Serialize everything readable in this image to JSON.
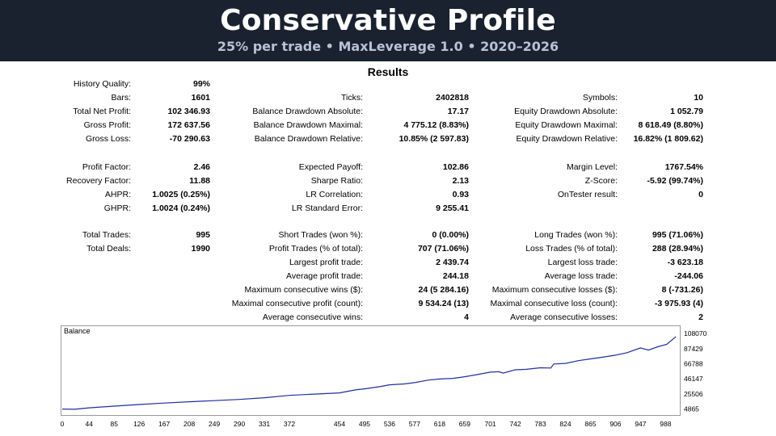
{
  "banner": {
    "title": "Conservative Profile",
    "subtitle": "25% per trade • MaxLeverage 1.0 • 2020–2026"
  },
  "results_title": "Results",
  "stats": {
    "history_quality": {
      "label": "History Quality:",
      "value": "99%"
    },
    "bars": {
      "label": "Bars:",
      "value": "1601"
    },
    "ticks": {
      "label": "Ticks:",
      "value": "2402818"
    },
    "symbols": {
      "label": "Symbols:",
      "value": "10"
    },
    "total_net_profit": {
      "label": "Total Net Profit:",
      "value": "102 346.93"
    },
    "balance_dd_abs": {
      "label": "Balance Drawdown Absolute:",
      "value": "17.17"
    },
    "equity_dd_abs": {
      "label": "Equity Drawdown Absolute:",
      "value": "1 052.79"
    },
    "gross_profit": {
      "label": "Gross Profit:",
      "value": "172 637.56"
    },
    "balance_dd_max": {
      "label": "Balance Drawdown Maximal:",
      "value": "4 775.12 (8.83%)"
    },
    "equity_dd_max": {
      "label": "Equity Drawdown Maximal:",
      "value": "8 618.49 (8.80%)"
    },
    "gross_loss": {
      "label": "Gross Loss:",
      "value": "-70 290.63"
    },
    "balance_dd_rel": {
      "label": "Balance Drawdown Relative:",
      "value": "10.85% (2 597.83)"
    },
    "equity_dd_rel": {
      "label": "Equity Drawdown Relative:",
      "value": "16.82% (1 809.62)"
    },
    "profit_factor": {
      "label": "Profit Factor:",
      "value": "2.46"
    },
    "expected_payoff": {
      "label": "Expected Payoff:",
      "value": "102.86"
    },
    "margin_level": {
      "label": "Margin Level:",
      "value": "1767.54%"
    },
    "recovery_factor": {
      "label": "Recovery Factor:",
      "value": "11.88"
    },
    "sharpe_ratio": {
      "label": "Sharpe Ratio:",
      "value": "2.13"
    },
    "z_score": {
      "label": "Z-Score:",
      "value": "-5.92 (99.74%)"
    },
    "ahpr": {
      "label": "AHPR:",
      "value": "1.0025 (0.25%)"
    },
    "lr_correlation": {
      "label": "LR Correlation:",
      "value": "0.93"
    },
    "ontester_result": {
      "label": "OnTester result:",
      "value": "0"
    },
    "ghpr": {
      "label": "GHPR:",
      "value": "1.0024 (0.24%)"
    },
    "lr_std_error": {
      "label": "LR Standard Error:",
      "value": "9 255.41"
    },
    "total_trades": {
      "label": "Total Trades:",
      "value": "995"
    },
    "short_trades": {
      "label": "Short Trades (won %):",
      "value": "0 (0.00%)"
    },
    "long_trades": {
      "label": "Long Trades (won %):",
      "value": "995 (71.06%)"
    },
    "total_deals": {
      "label": "Total Deals:",
      "value": "1990"
    },
    "profit_trades": {
      "label": "Profit Trades (% of total):",
      "value": "707 (71.06%)"
    },
    "loss_trades": {
      "label": "Loss Trades (% of total):",
      "value": "288 (28.94%)"
    },
    "largest_profit": {
      "label": "Largest profit trade:",
      "value": "2 439.74"
    },
    "largest_loss": {
      "label": "Largest loss trade:",
      "value": "-3 623.18"
    },
    "avg_profit": {
      "label": "Average profit trade:",
      "value": "244.18"
    },
    "avg_loss": {
      "label": "Average loss trade:",
      "value": "-244.06"
    },
    "max_consec_wins": {
      "label": "Maximum consecutive wins ($):",
      "value": "24 (5 284.16)"
    },
    "max_consec_losses": {
      "label": "Maximum consecutive losses ($):",
      "value": "8 (-731.26)"
    },
    "maximal_consec_profit": {
      "label": "Maximal consecutive profit (count):",
      "value": "9 534.24 (13)"
    },
    "maximal_consec_loss": {
      "label": "Maximal consecutive loss (count):",
      "value": "-3 975.93 (4)"
    },
    "avg_consec_wins": {
      "label": "Average consecutive wins:",
      "value": "4"
    },
    "avg_consec_losses": {
      "label": "Average consecutive losses:",
      "value": "2"
    }
  },
  "chart_data": {
    "type": "line",
    "title": "Balance",
    "xlabel": "",
    "ylabel": "",
    "x_ticks": [
      0,
      44,
      85,
      126,
      167,
      208,
      249,
      290,
      331,
      372,
      454,
      495,
      536,
      577,
      618,
      659,
      701,
      742,
      783,
      824,
      865,
      906,
      947,
      988
    ],
    "y_ticks": [
      4865,
      25506,
      46147,
      66788,
      87429,
      108070
    ],
    "xlim": [
      0,
      1010
    ],
    "ylim": [
      0,
      116000
    ],
    "line_color": "#1f2fa0",
    "series": [
      {
        "x": [
          0,
          20,
          44,
          85,
          126,
          167,
          208,
          249,
          290,
          331,
          372,
          413,
          454,
          480,
          495,
          520,
          536,
          560,
          577,
          600,
          618,
          640,
          659,
          680,
          701,
          715,
          722,
          742,
          760,
          783,
          800,
          805,
          824,
          845,
          865,
          885,
          906,
          925,
          947,
          960,
          975,
          990,
          1005
        ],
        "y": [
          4865,
          4500,
          6500,
          8800,
          11000,
          13000,
          14800,
          16300,
          18000,
          20300,
          23500,
          25300,
          27000,
          31000,
          32500,
          35500,
          38000,
          39200,
          41000,
          44500,
          46000,
          46800,
          49000,
          52000,
          55300,
          55900,
          54000,
          58500,
          59200,
          61300,
          61000,
          66500,
          67300,
          71000,
          73500,
          75800,
          78500,
          82000,
          88500,
          85500,
          90000,
          93500,
          104000
        ]
      }
    ]
  }
}
